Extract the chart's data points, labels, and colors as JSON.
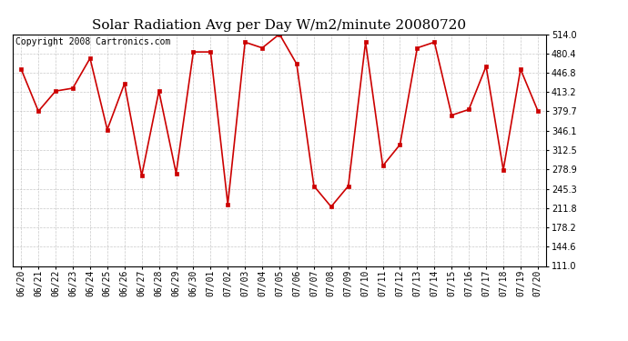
{
  "title": "Solar Radiation Avg per Day W/m2/minute 20080720",
  "copyright": "Copyright 2008 Cartronics.com",
  "dates": [
    "06/20",
    "06/21",
    "06/22",
    "06/23",
    "06/24",
    "06/25",
    "06/26",
    "06/27",
    "06/28",
    "06/29",
    "06/30",
    "07/01",
    "07/02",
    "07/03",
    "07/04",
    "07/05",
    "07/06",
    "07/07",
    "07/08",
    "07/09",
    "07/10",
    "07/11",
    "07/12",
    "07/13",
    "07/14",
    "07/15",
    "07/16",
    "07/17",
    "07/18",
    "07/19",
    "07/20"
  ],
  "values": [
    453,
    380,
    415,
    420,
    472,
    348,
    428,
    268,
    415,
    272,
    483,
    483,
    218,
    500,
    490,
    514,
    462,
    250,
    214,
    250,
    500,
    285,
    322,
    490,
    500,
    373,
    383,
    458,
    278,
    453,
    381
  ],
  "line_color": "#cc0000",
  "marker_color": "#cc0000",
  "bg_color": "#ffffff",
  "plot_bg_color": "#ffffff",
  "grid_color": "#bbbbbb",
  "title_fontsize": 11,
  "copyright_fontsize": 7,
  "tick_fontsize": 7,
  "ymin": 111.0,
  "ymax": 514.0,
  "yticks": [
    111.0,
    144.6,
    178.2,
    211.8,
    245.3,
    278.9,
    312.5,
    346.1,
    379.7,
    413.2,
    446.8,
    480.4,
    514.0
  ]
}
